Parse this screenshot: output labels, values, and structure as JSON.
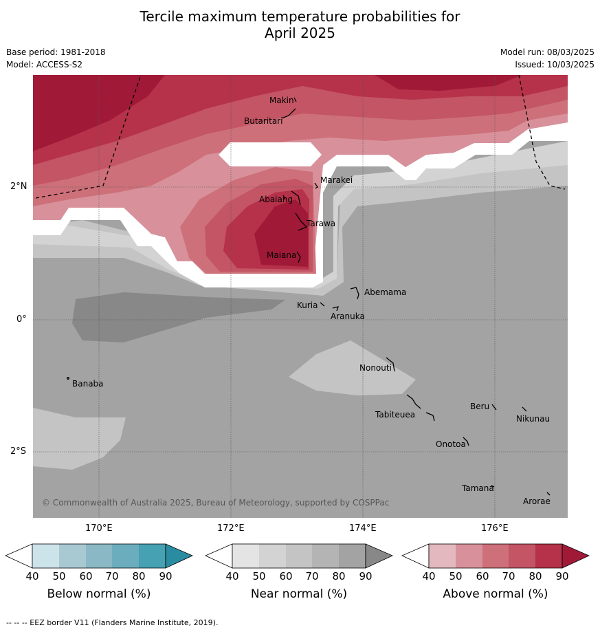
{
  "title_line1": "Tercile maximum temperature probabilities for",
  "title_line2": "April 2025",
  "meta": {
    "base_period": "Base period: 1981-2018",
    "model": "Model: ACCESS-S2",
    "model_run": "Model run: 08/03/2025",
    "issued": "Issued: 10/03/2025"
  },
  "map": {
    "lon_labels": [
      "170°E",
      "172°E",
      "174°E",
      "176°E"
    ],
    "lat_labels": [
      "2°N",
      "0°",
      "2°S"
    ],
    "places": [
      "Makin",
      "Butaritari",
      "Marakei",
      "Abaiang",
      "Tarawa",
      "Maiana",
      "Abemama",
      "Kuria",
      "Aranuka",
      "Nonouti",
      "Banaba",
      "Beru",
      "Nikunau",
      "Tabiteuea",
      "Onotoa",
      "Tamana",
      "Arorae"
    ],
    "copyright": "© Commonwealth of Australia 2025, Bureau of Meteorology, supported by COSPPac"
  },
  "colorbars": [
    {
      "label": "Below normal (%)",
      "ticks": [
        "40",
        "50",
        "60",
        "70",
        "80",
        "90"
      ],
      "colors": [
        "#ffffff",
        "#cde3ea",
        "#a8c9d2",
        "#8ab8c5",
        "#6badbd",
        "#46a1b2",
        "#2a8ca0"
      ]
    },
    {
      "label": "Near normal (%)",
      "ticks": [
        "40",
        "50",
        "60",
        "70",
        "80",
        "90"
      ],
      "colors": [
        "#ffffff",
        "#e4e4e4",
        "#d3d3d3",
        "#c4c4c4",
        "#b4b4b4",
        "#a3a3a3",
        "#888888"
      ]
    },
    {
      "label": "Above normal (%)",
      "ticks": [
        "40",
        "50",
        "60",
        "70",
        "80",
        "90"
      ],
      "colors": [
        "#ffffff",
        "#e3b8bf",
        "#d8919b",
        "#cd7079",
        "#c35564",
        "#b5324a",
        "#a01a38"
      ]
    }
  ],
  "footer": "--  --  -- EEZ border V11 (Flanders Marine Institute, 2019)."
}
